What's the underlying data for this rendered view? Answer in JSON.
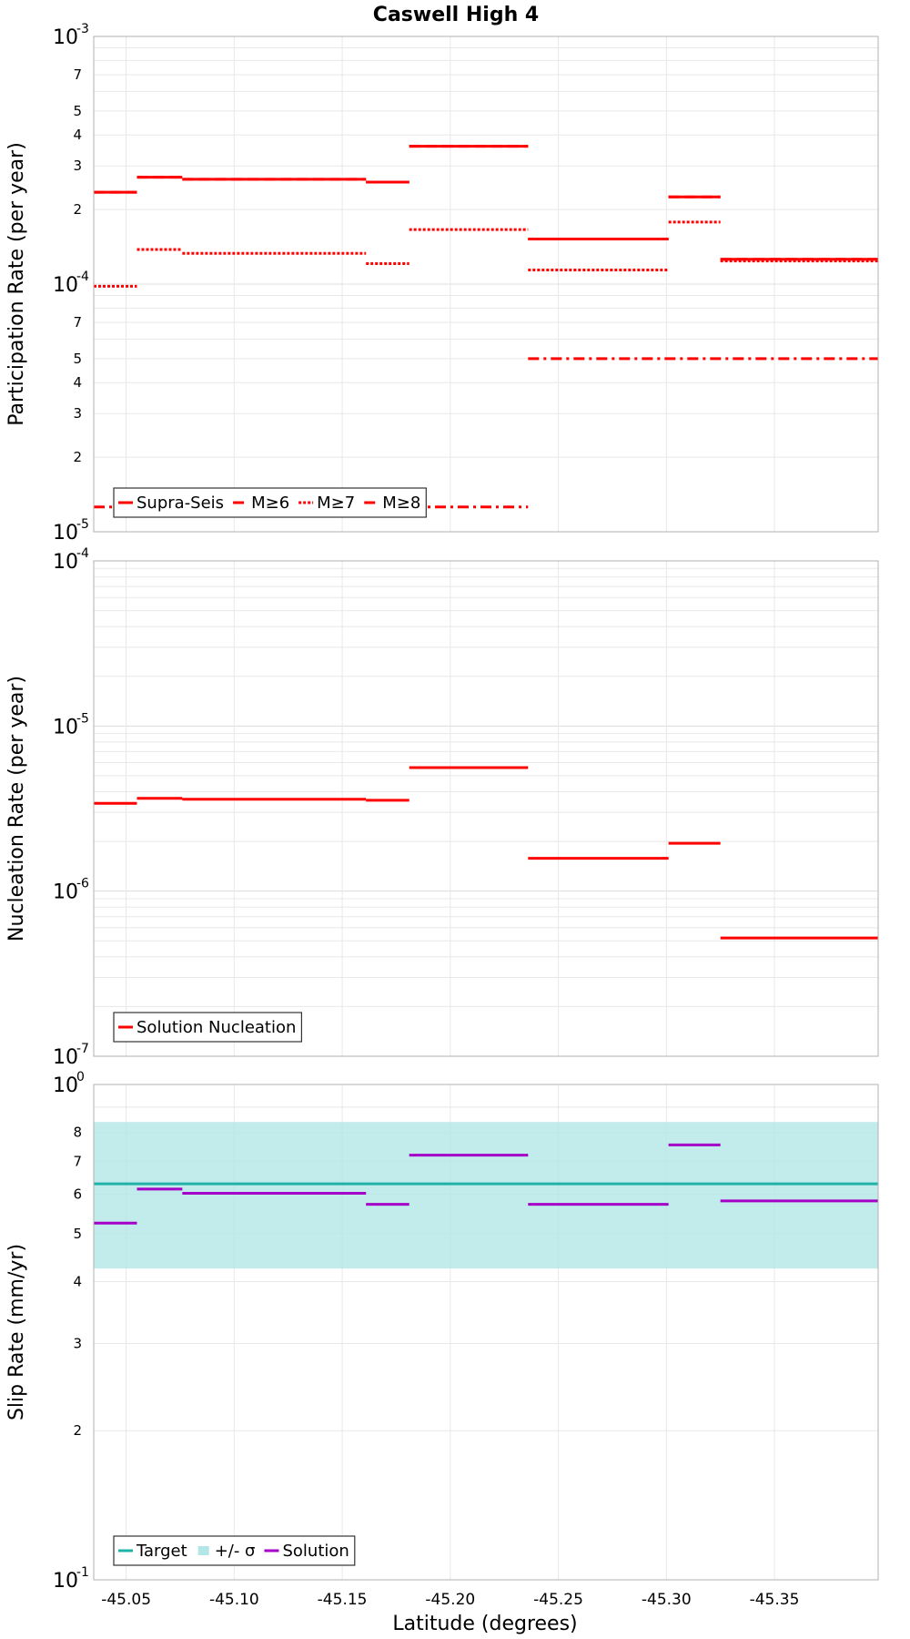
{
  "title": "Caswell High 4",
  "colors": {
    "red": "#ff0000",
    "teal": "#1fb3a8",
    "band": "#b3e6e6",
    "purple": "#a400c8",
    "grid": "#e8e8e8",
    "frame": "#b0b0b0"
  },
  "x_axis": {
    "label": "Latitude (degrees)",
    "lim": [
      -45.035,
      -45.398
    ],
    "ticks": [
      -45.05,
      -45.1,
      -45.15,
      -45.2,
      -45.25,
      -45.3,
      -45.35
    ],
    "tick_labels": [
      "-45.05",
      "-45.10",
      "-45.15",
      "-45.20",
      "-45.25",
      "-45.30",
      "-45.35"
    ]
  },
  "chart_data": [
    {
      "type": "line",
      "name": "participation",
      "ylabel": "Participation Rate (per year)",
      "yscale": "log",
      "ylim": [
        1e-05,
        0.001
      ],
      "major_ticks": [
        {
          "base": "10",
          "exp": "-5",
          "value": 1e-05
        },
        {
          "base": "10",
          "exp": "-4",
          "value": 0.0001
        },
        {
          "base": "10",
          "exp": "-3",
          "value": 0.001
        }
      ],
      "minor_ticks": [
        {
          "label": "2",
          "value": 2e-05
        },
        {
          "label": "3",
          "value": 3e-05
        },
        {
          "label": "4",
          "value": 4e-05
        },
        {
          "label": "5",
          "value": 5e-05
        },
        {
          "label": "7",
          "value": 7e-05
        },
        {
          "label": "2",
          "value": 0.0002
        },
        {
          "label": "3",
          "value": 0.0003
        },
        {
          "label": "4",
          "value": 0.0004
        },
        {
          "label": "5",
          "value": 0.0005
        },
        {
          "label": "7",
          "value": 0.0007
        }
      ],
      "series": [
        {
          "name": "Supra-Seis",
          "style": "solid",
          "color": "#ff0000",
          "segments": [
            {
              "x": [
                -45.035,
                -45.055
              ],
              "y": 0.000235
            },
            {
              "x": [
                -45.055,
                -45.076
              ],
              "y": 0.00027
            },
            {
              "x": [
                -45.076,
                -45.161
              ],
              "y": 0.000265
            },
            {
              "x": [
                -45.161,
                -45.181
              ],
              "y": 0.000258
            },
            {
              "x": [
                -45.181,
                -45.236
              ],
              "y": 0.00036
            },
            {
              "x": [
                -45.236,
                -45.301
              ],
              "y": 0.000152
            },
            {
              "x": [
                -45.301,
                -45.325
              ],
              "y": 0.000225
            },
            {
              "x": [
                -45.325,
                -45.398
              ],
              "y": 0.000126
            }
          ]
        },
        {
          "name": "M≥6",
          "style": "dashed",
          "color": "#ff0000",
          "segments": [
            {
              "x": [
                -45.035,
                -45.055
              ],
              "y": 0.000235
            },
            {
              "x": [
                -45.055,
                -45.076
              ],
              "y": 0.00027
            },
            {
              "x": [
                -45.076,
                -45.161
              ],
              "y": 0.000265
            },
            {
              "x": [
                -45.161,
                -45.181
              ],
              "y": 0.000258
            },
            {
              "x": [
                -45.181,
                -45.236
              ],
              "y": 0.00036
            },
            {
              "x": [
                -45.236,
                -45.301
              ],
              "y": 0.000152
            },
            {
              "x": [
                -45.301,
                -45.325
              ],
              "y": 0.000225
            },
            {
              "x": [
                -45.325,
                -45.398
              ],
              "y": 0.000126
            }
          ]
        },
        {
          "name": "M≥7",
          "style": "dotted",
          "color": "#ff0000",
          "segments": [
            {
              "x": [
                -45.035,
                -45.055
              ],
              "y": 9.8e-05
            },
            {
              "x": [
                -45.055,
                -45.076
              ],
              "y": 0.000138
            },
            {
              "x": [
                -45.076,
                -45.161
              ],
              "y": 0.000133
            },
            {
              "x": [
                -45.161,
                -45.181
              ],
              "y": 0.000121
            },
            {
              "x": [
                -45.181,
                -45.236
              ],
              "y": 0.000166
            },
            {
              "x": [
                -45.236,
                -45.301
              ],
              "y": 0.000114
            },
            {
              "x": [
                -45.301,
                -45.325
              ],
              "y": 0.000178
            },
            {
              "x": [
                -45.325,
                -45.398
              ],
              "y": 0.000124
            }
          ]
        },
        {
          "name": "M≥8",
          "style": "dashdot",
          "color": "#ff0000",
          "segments": [
            {
              "x": [
                -45.035,
                -45.236
              ],
              "y": 1.26e-05
            },
            {
              "x": [
                -45.236,
                -45.398
              ],
              "y": 5e-05
            }
          ]
        }
      ],
      "legend": {
        "position": "bottom-left",
        "entries": [
          "Supra-Seis",
          "M≥6",
          "M≥7",
          "M≥8"
        ]
      }
    },
    {
      "type": "line",
      "name": "nucleation",
      "ylabel": "Nucleation Rate (per year)",
      "yscale": "log",
      "ylim": [
        1e-07,
        0.0001
      ],
      "major_ticks": [
        {
          "base": "10",
          "exp": "-7",
          "value": 1e-07
        },
        {
          "base": "10",
          "exp": "-6",
          "value": 1e-06
        },
        {
          "base": "10",
          "exp": "-5",
          "value": 1e-05
        },
        {
          "base": "10",
          "exp": "-4",
          "value": 0.0001
        }
      ],
      "minor_ticks": [],
      "series": [
        {
          "name": "Solution Nucleation",
          "style": "solid",
          "color": "#ff0000",
          "segments": [
            {
              "x": [
                -45.035,
                -45.055
              ],
              "y": 3.4e-06
            },
            {
              "x": [
                -45.055,
                -45.076
              ],
              "y": 3.65e-06
            },
            {
              "x": [
                -45.076,
                -45.161
              ],
              "y": 3.6e-06
            },
            {
              "x": [
                -45.161,
                -45.181
              ],
              "y": 3.55e-06
            },
            {
              "x": [
                -45.181,
                -45.236
              ],
              "y": 5.6e-06
            },
            {
              "x": [
                -45.236,
                -45.301
              ],
              "y": 1.58e-06
            },
            {
              "x": [
                -45.301,
                -45.325
              ],
              "y": 1.95e-06
            },
            {
              "x": [
                -45.325,
                -45.398
              ],
              "y": 5.2e-07
            }
          ]
        }
      ],
      "legend": {
        "position": "bottom-left",
        "entries": [
          "Solution Nucleation"
        ]
      }
    },
    {
      "type": "line",
      "name": "slip",
      "ylabel": "Slip Rate (mm/yr)",
      "yscale": "log",
      "ylim": [
        0.1,
        1.0
      ],
      "major_ticks": [
        {
          "base": "10",
          "exp": "-1",
          "value": 0.1
        },
        {
          "base": "10",
          "exp": "0",
          "value": 1.0
        }
      ],
      "minor_ticks": [
        {
          "label": "2",
          "value": 0.2
        },
        {
          "label": "3",
          "value": 0.3
        },
        {
          "label": "4",
          "value": 0.4
        },
        {
          "label": "5",
          "value": 0.5
        },
        {
          "label": "6",
          "value": 0.6
        },
        {
          "label": "7",
          "value": 0.7
        },
        {
          "label": "8",
          "value": 0.8
        }
      ],
      "band": {
        "name": "+/- σ",
        "color": "#b3e6e6",
        "lower": 0.425,
        "upper": 0.84
      },
      "series": [
        {
          "name": "Target",
          "style": "solid",
          "color": "#1fb3a8",
          "segments": [
            {
              "x": [
                -45.035,
                -45.398
              ],
              "y": 0.63
            }
          ]
        },
        {
          "name": "Solution",
          "style": "solid",
          "color": "#a400c8",
          "segments": [
            {
              "x": [
                -45.035,
                -45.055
              ],
              "y": 0.525
            },
            {
              "x": [
                -45.055,
                -45.076
              ],
              "y": 0.615
            },
            {
              "x": [
                -45.076,
                -45.161
              ],
              "y": 0.603
            },
            {
              "x": [
                -45.161,
                -45.181
              ],
              "y": 0.573
            },
            {
              "x": [
                -45.181,
                -45.236
              ],
              "y": 0.72
            },
            {
              "x": [
                -45.236,
                -45.301
              ],
              "y": 0.573
            },
            {
              "x": [
                -45.301,
                -45.325
              ],
              "y": 0.755
            },
            {
              "x": [
                -45.325,
                -45.398
              ],
              "y": 0.582
            }
          ]
        }
      ],
      "legend": {
        "position": "bottom-left",
        "entries": [
          "Target",
          "+/- σ",
          "Solution"
        ]
      }
    }
  ]
}
